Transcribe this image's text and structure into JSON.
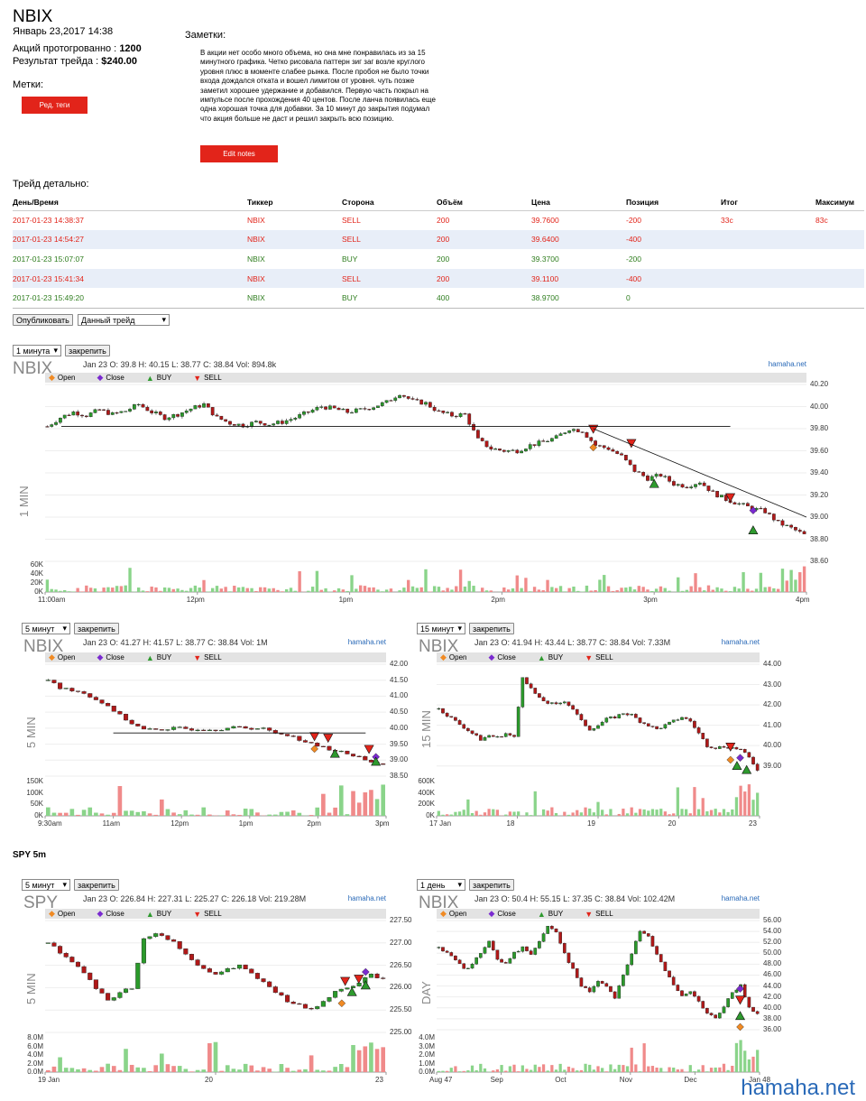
{
  "header": {
    "symbol": "NBIX",
    "datetime": "Январь 23,2017 14:38",
    "shares_label": "Акций протогрованно :",
    "shares_value": "1200",
    "result_label": "Результат трейда :",
    "result_value": "$240.00",
    "tags_label": "Метки:",
    "tags_button": "Ред. теги"
  },
  "notes": {
    "label": "Заметки:",
    "text": "В акции нет особо много объема, но она мне понравилась из за 15 минутного графика. Четко рисовала паттерн зиг заг возле круглого уровня плюс в моменте слабее рынка. После пробоя не было точки входа дождался откатa и вошел лимитом от уровня. чуть позже заметил хорошее удержание и добавился. Первую часть покрыл на импульсе после прохождения 40 центов. После ланча появилась еще одна хорошая точка для добавки. За 10 минут до закрытия подумал что акция больше не даст и решил закрыть всю позицию.",
    "edit_button": "Edit notes"
  },
  "trades": {
    "title": "Трейд детально:",
    "columns": [
      "День/Время",
      "Тиккер",
      "Сторона",
      "Объём",
      "Цена",
      "Позиция",
      "Итог",
      "Максимум"
    ],
    "rows": [
      {
        "time": "2017-01-23 14:38:37",
        "ticker": "NBIX",
        "side": "SELL",
        "vol": "200",
        "price": "39.7600",
        "pos": "-200",
        "res": "33c",
        "max": "83c"
      },
      {
        "time": "2017-01-23 14:54:27",
        "ticker": "NBIX",
        "side": "SELL",
        "vol": "200",
        "price": "39.6400",
        "pos": "-400",
        "res": "",
        "max": ""
      },
      {
        "time": "2017-01-23 15:07:07",
        "ticker": "NBIX",
        "side": "BUY",
        "vol": "200",
        "price": "39.3700",
        "pos": "-200",
        "res": "",
        "max": ""
      },
      {
        "time": "2017-01-23 15:41:34",
        "ticker": "NBIX",
        "side": "SELL",
        "vol": "200",
        "price": "39.1100",
        "pos": "-400",
        "res": "",
        "max": ""
      },
      {
        "time": "2017-01-23 15:49:20",
        "ticker": "NBIX",
        "side": "BUY",
        "vol": "400",
        "price": "38.9700",
        "pos": "0",
        "res": "",
        "max": ""
      }
    ]
  },
  "publish": {
    "button": "Опубликовать",
    "select": "Данный трейд"
  },
  "pin_label": "закрепить",
  "spy_title": "SPY 5m",
  "legend": {
    "open": "Open",
    "close": "Close",
    "buy": "BUY",
    "sell": "SELL"
  },
  "source": "hamaha.net",
  "watermark": "hamaha.net",
  "colors": {
    "red": "#e2241a",
    "green": "#2e9a2e",
    "up": "#2a9a2a",
    "down": "#b01818",
    "orange": "#f08a24",
    "purple": "#7a2ad0"
  },
  "chart_data": [
    {
      "type": "candlestick",
      "timeframe_select": "1 минута",
      "symbol": "NBIX",
      "info": "Jan 23 O: 39.8 H: 40.15 L: 38.77 C: 38.84",
      "vol_info": "Vol: 894.8k",
      "vertical_label": "1 MIN",
      "yticks": [
        "40.20",
        "40.00",
        "39.80",
        "39.60",
        "39.40",
        "39.20",
        "39.00",
        "38.80",
        "38.60"
      ],
      "ylim": [
        38.6,
        40.2
      ],
      "vticks": [
        "60K",
        "40K",
        "20K",
        "0K"
      ],
      "xticks": [
        "11:00am",
        "12pm",
        "1pm",
        "2pm",
        "3pm",
        "4pm"
      ],
      "path": [
        39.82,
        39.9,
        39.95,
        39.92,
        39.97,
        39.93,
        39.96,
        40.02,
        39.95,
        39.9,
        39.93,
        39.98,
        40.02,
        39.9,
        39.85,
        39.83,
        39.86,
        39.84,
        39.86,
        39.9,
        39.95,
        40.0,
        39.98,
        39.95,
        39.97,
        40.0,
        40.04,
        40.12,
        40.05,
        40.03,
        39.95,
        39.92,
        39.93,
        39.7,
        39.62,
        39.6,
        39.6,
        39.65,
        39.68,
        39.72,
        39.8,
        39.78,
        39.65,
        39.62,
        39.55,
        39.42,
        39.35,
        39.38,
        39.3,
        39.28,
        39.32,
        39.22,
        39.16,
        39.12,
        39.08,
        39.05,
        38.95,
        38.9,
        38.84
      ],
      "markers": [
        {
          "kind": "sell",
          "x": 0.72,
          "y": 39.8
        },
        {
          "kind": "open",
          "x": 0.72,
          "y": 39.63
        },
        {
          "kind": "sell",
          "x": 0.77,
          "y": 39.67
        },
        {
          "kind": "buy",
          "x": 0.8,
          "y": 39.3
        },
        {
          "kind": "sell",
          "x": 0.9,
          "y": 39.18
        },
        {
          "kind": "close",
          "x": 0.93,
          "y": 39.06
        },
        {
          "kind": "buy",
          "x": 0.93,
          "y": 38.88
        }
      ]
    },
    {
      "type": "candlestick",
      "timeframe_select": "5 минут",
      "symbol": "NBIX",
      "info": "Jan 23 O: 41.27 H: 41.57 L: 38.77 C: 38.84",
      "vol_info": "Vol: 1M",
      "vertical_label": "5 MIN",
      "yticks": [
        "42.00",
        "41.50",
        "41.00",
        "40.50",
        "40.00",
        "39.50",
        "39.00",
        "38.50"
      ],
      "ylim": [
        38.5,
        42.0
      ],
      "vticks": [
        "150K",
        "100K",
        "50K",
        "0K"
      ],
      "xticks": [
        "9:30am",
        "11am",
        "12pm",
        "1pm",
        "2pm",
        "3pm"
      ],
      "path": [
        41.5,
        41.25,
        41.2,
        41.1,
        40.9,
        40.7,
        40.4,
        40.15,
        39.95,
        39.95,
        39.98,
        40.0,
        39.97,
        39.98,
        39.96,
        40.0,
        40.03,
        40.0,
        39.98,
        39.85,
        39.8,
        39.65,
        39.5,
        39.4,
        39.3,
        39.2,
        39.1,
        38.95,
        38.84
      ],
      "markers": [
        {
          "kind": "sell",
          "x": 0.79,
          "y": 39.75
        },
        {
          "kind": "open",
          "x": 0.79,
          "y": 39.35
        },
        {
          "kind": "sell",
          "x": 0.83,
          "y": 39.7
        },
        {
          "kind": "buy",
          "x": 0.85,
          "y": 39.2
        },
        {
          "kind": "sell",
          "x": 0.95,
          "y": 39.35
        },
        {
          "kind": "close",
          "x": 0.97,
          "y": 39.1
        },
        {
          "kind": "buy",
          "x": 0.97,
          "y": 38.95
        }
      ]
    },
    {
      "type": "candlestick",
      "timeframe_select": "15 минут",
      "symbol": "NBIX",
      "info": "Jan 23 O: 41.94 H: 43.44 L: 38.77 C: 38.84",
      "vol_info": "Vol: 7.33M",
      "vertical_label": "15 MIN",
      "yticks": [
        "44.00",
        "43.00",
        "42.00",
        "41.00",
        "40.00",
        "39.00"
      ],
      "ylim": [
        38.5,
        44.0
      ],
      "vticks": [
        "600K",
        "400K",
        "200K",
        "0K"
      ],
      "xticks": [
        "17 Jan",
        "18",
        "19",
        "20",
        "23"
      ],
      "path": [
        41.8,
        41.5,
        41.2,
        40.9,
        40.6,
        40.3,
        40.5,
        40.4,
        40.6,
        40.4,
        43.4,
        42.8,
        42.3,
        42.1,
        42.0,
        42.2,
        41.8,
        41.2,
        40.8,
        41.0,
        41.3,
        41.4,
        41.6,
        41.5,
        41.2,
        41.0,
        40.8,
        41.0,
        41.2,
        41.4,
        41.2,
        40.6,
        40.0,
        39.9,
        39.95,
        39.9,
        39.8,
        39.4,
        38.84
      ],
      "markers": [
        {
          "kind": "sell",
          "x": 0.91,
          "y": 39.95
        },
        {
          "kind": "open",
          "x": 0.91,
          "y": 39.3
        },
        {
          "kind": "close",
          "x": 0.94,
          "y": 39.4
        },
        {
          "kind": "buy",
          "x": 0.93,
          "y": 39.0
        },
        {
          "kind": "buy",
          "x": 0.96,
          "y": 38.8
        }
      ]
    },
    {
      "type": "candlestick",
      "timeframe_select": "5 минут",
      "symbol": "SPY",
      "info": "Jan 23 O: 226.84 H: 227.31 L: 225.27 C: 226.18",
      "vol_info": "Vol: 219.28M",
      "vertical_label": "5 MIN",
      "yticks": [
        "227.50",
        "227.00",
        "226.50",
        "226.00",
        "225.50",
        "225.00"
      ],
      "ylim": [
        225.0,
        227.5
      ],
      "vticks": [
        "8.0M",
        "6.0M",
        "4.0M",
        "2.0M",
        "0.0M"
      ],
      "xticks": [
        "19 Jan",
        "20",
        "23"
      ],
      "path": [
        227.0,
        226.8,
        226.6,
        226.3,
        226.0,
        225.7,
        225.9,
        226.0,
        227.1,
        227.2,
        227.1,
        226.9,
        226.6,
        226.4,
        226.3,
        226.4,
        226.5,
        226.3,
        226.1,
        225.9,
        225.7,
        225.6,
        225.5,
        225.7,
        225.9,
        226.0,
        226.1,
        226.3,
        226.18
      ],
      "markers": [
        {
          "kind": "open",
          "x": 0.87,
          "y": 225.65
        },
        {
          "kind": "sell",
          "x": 0.88,
          "y": 226.15
        },
        {
          "kind": "buy",
          "x": 0.9,
          "y": 225.9
        },
        {
          "kind": "sell",
          "x": 0.92,
          "y": 226.2
        },
        {
          "kind": "close",
          "x": 0.94,
          "y": 226.35
        },
        {
          "kind": "buy",
          "x": 0.94,
          "y": 226.05
        }
      ]
    },
    {
      "type": "candlestick",
      "timeframe_select": "1 день",
      "symbol": "NBIX",
      "info": "Jan 23 O: 50.4 H: 55.15 L: 37.35 C: 38.84",
      "vol_info": "Vol: 102.42M",
      "vertical_label": "DAY",
      "yticks": [
        "56.00",
        "54.00",
        "52.00",
        "50.00",
        "48.00",
        "46.00",
        "44.00",
        "42.00",
        "40.00",
        "38.00",
        "36.00"
      ],
      "ylim": [
        35.5,
        56.0
      ],
      "vticks": [
        "4.0M",
        "3.0M",
        "2.0M",
        "1.0M",
        "0.0M"
      ],
      "xticks": [
        "Aug 47",
        "Sep",
        "Oct",
        "Nov",
        "Dec",
        "Jan 48"
      ],
      "path": [
        51,
        50,
        49,
        47,
        48,
        50,
        52,
        49,
        48,
        50,
        51,
        50,
        52,
        55,
        54,
        50,
        47,
        44,
        43,
        45,
        44,
        42,
        46,
        50,
        54,
        53,
        50,
        47,
        44,
        42,
        43,
        41,
        39,
        38,
        40,
        43,
        44,
        40,
        38.84
      ],
      "markers": [
        {
          "kind": "close",
          "x": 0.94,
          "y": 43.5
        },
        {
          "kind": "sell",
          "x": 0.94,
          "y": 41.5
        },
        {
          "kind": "buy",
          "x": 0.94,
          "y": 38.5
        },
        {
          "kind": "open",
          "x": 0.94,
          "y": 36.5
        }
      ]
    }
  ]
}
